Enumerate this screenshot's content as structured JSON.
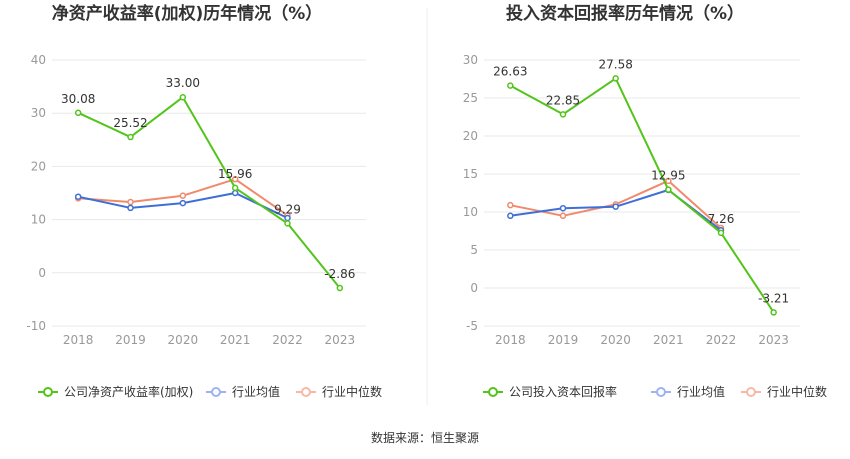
{
  "colors": {
    "company": "#52c41a",
    "industry_avg": "#3e6fd8",
    "industry_median": "#f08a6c",
    "legend_avg": "#9db4f0",
    "legend_median": "#f7b9a6",
    "grid": "#e8e8e8",
    "divider": "#eeeeee"
  },
  "chart_data": [
    {
      "type": "line",
      "title": "净资产收益率(加权)历年情况（%）",
      "categories": [
        "2018",
        "2019",
        "2020",
        "2021",
        "2022",
        "2023"
      ],
      "ylim": [
        -10,
        40
      ],
      "yticks": [
        "40",
        "30",
        "20",
        "10",
        "0",
        "-10"
      ],
      "series": [
        {
          "name": "公司净资产收益率(加权)",
          "values": [
            30.08,
            25.52,
            33.0,
            15.96,
            9.29,
            -2.86
          ],
          "labels": [
            "30.08",
            "25.52",
            "33.00",
            "15.96",
            "9.29",
            "-2.86"
          ]
        },
        {
          "name": "行业均值",
          "values": [
            14.3,
            12.2,
            13.1,
            15.0,
            10.3,
            null
          ]
        },
        {
          "name": "行业中位数",
          "values": [
            14.0,
            13.3,
            14.5,
            17.6,
            10.8,
            null
          ]
        }
      ]
    },
    {
      "type": "line",
      "title": "投入资本回报率历年情况（%）",
      "categories": [
        "2018",
        "2019",
        "2020",
        "2021",
        "2022",
        "2023"
      ],
      "ylim": [
        -5,
        30
      ],
      "yticks": [
        "30",
        "25",
        "20",
        "15",
        "10",
        "5",
        "0",
        "-5"
      ],
      "series": [
        {
          "name": "公司投入资本回报率",
          "values": [
            26.63,
            22.85,
            27.58,
            12.95,
            7.26,
            -3.21
          ],
          "labels": [
            "26.63",
            "22.85",
            "27.58",
            "12.95",
            "7.26",
            "-3.21"
          ]
        },
        {
          "name": "行业均值",
          "values": [
            9.5,
            10.5,
            10.7,
            12.9,
            7.6,
            null
          ]
        },
        {
          "name": "行业中位数",
          "values": [
            10.9,
            9.5,
            11.0,
            14.1,
            7.9,
            null
          ]
        }
      ]
    }
  ],
  "source": "数据来源：恒生聚源"
}
